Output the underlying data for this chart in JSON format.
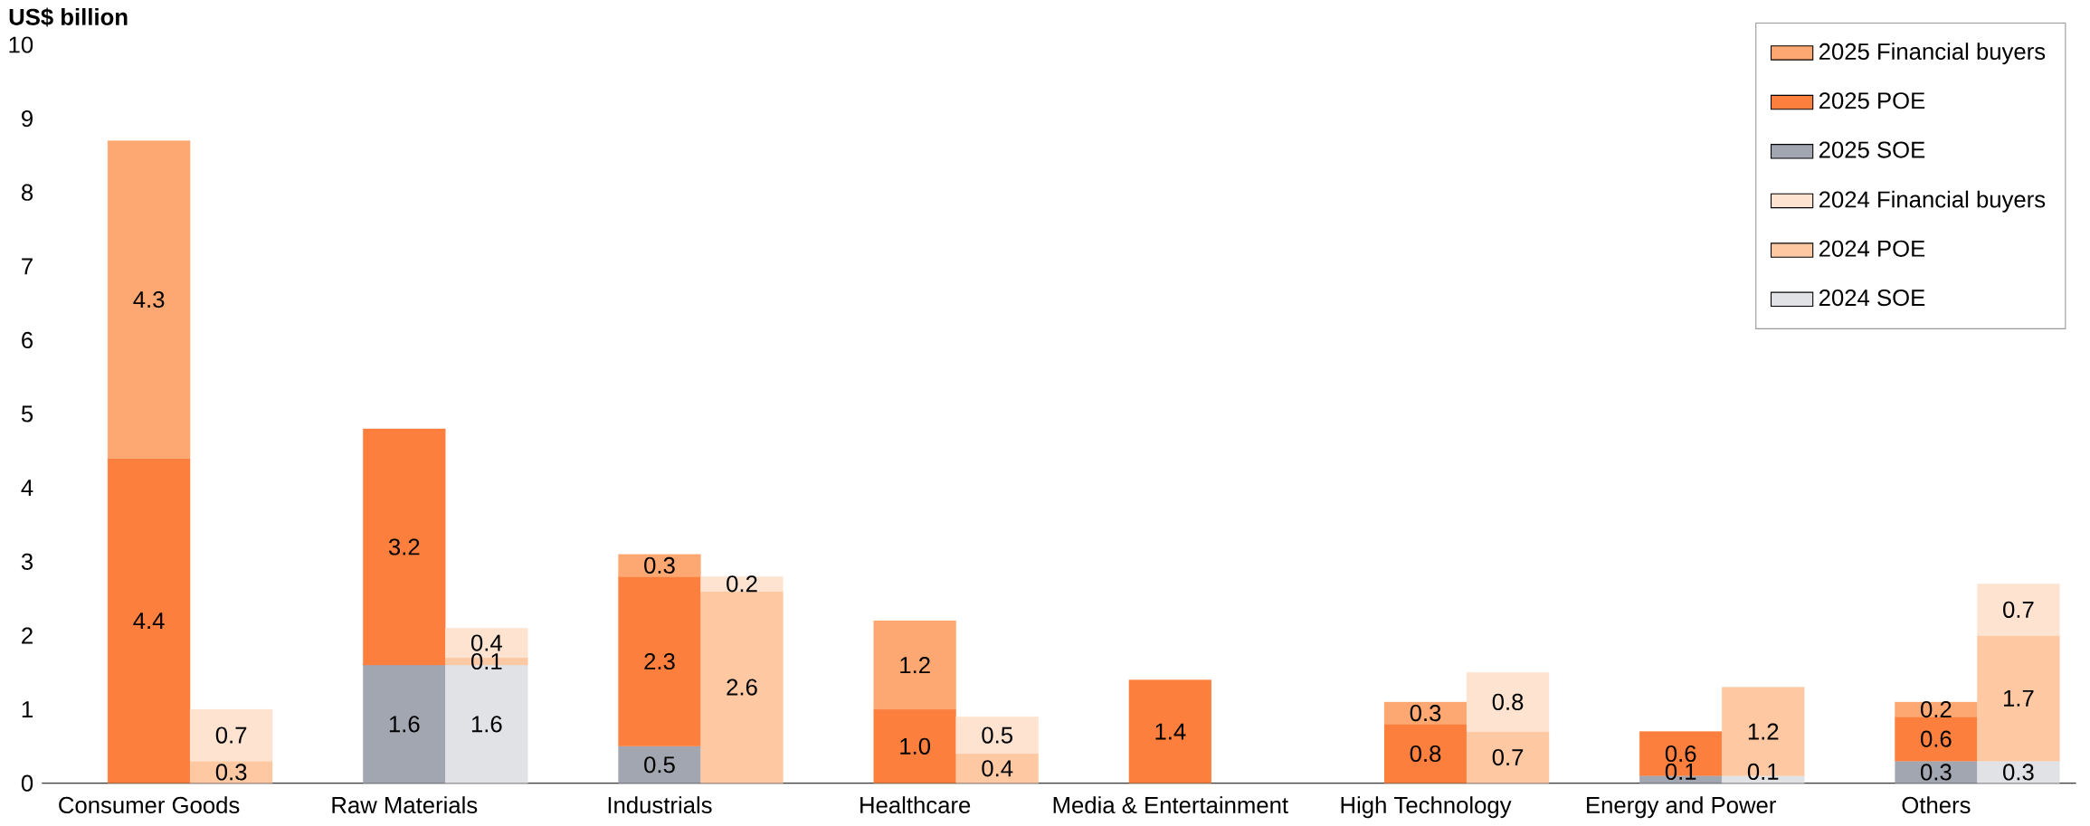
{
  "chart_data": {
    "type": "bar",
    "stacked": true,
    "ylabel": "US$ billion",
    "categories": [
      "Consumer Goods",
      null,
      "Raw Materials",
      null,
      "Industrials",
      null,
      "Healthcare",
      null,
      "Media & Entertainment",
      null,
      "High Technology",
      null,
      "Energy and Power",
      null,
      "Others",
      null
    ],
    "ylim": [
      0,
      10
    ],
    "yticks": [
      0,
      1,
      2,
      3,
      4,
      5,
      6,
      7,
      8,
      9,
      10
    ],
    "legend": "top right",
    "grid": false,
    "series": [
      {
        "name": "2025 SOE",
        "color": "#a2a6b0",
        "values": [
          null,
          null,
          1.6,
          null,
          0.5,
          null,
          null,
          null,
          null,
          null,
          null,
          null,
          0.1,
          null,
          0.3,
          null
        ],
        "value_labels": [
          null,
          null,
          "1.6",
          null,
          "0.5",
          null,
          null,
          null,
          null,
          null,
          null,
          null,
          "0.1",
          null,
          "0.3",
          null
        ]
      },
      {
        "name": "2025 POE",
        "color": "#fd7f3e",
        "values": [
          4.4,
          null,
          3.2,
          null,
          2.3,
          null,
          1.0,
          null,
          1.4,
          null,
          0.8,
          null,
          0.6,
          null,
          0.6,
          null
        ],
        "value_labels": [
          "4.4",
          null,
          "3.2",
          null,
          "2.3",
          null,
          "1.0",
          null,
          "1.4",
          null,
          "0.8",
          null,
          "0.6",
          null,
          "0.6",
          null
        ]
      },
      {
        "name": "2025 Financial buyers",
        "color": "#fda872",
        "values": [
          4.3,
          null,
          null,
          null,
          0.3,
          null,
          1.2,
          null,
          null,
          null,
          0.3,
          null,
          null,
          null,
          0.2,
          null
        ],
        "value_labels": [
          "4.3",
          null,
          null,
          null,
          "0.3",
          null,
          "1.2",
          null,
          null,
          null,
          "0.3",
          null,
          null,
          null,
          "0.2",
          null
        ]
      },
      {
        "name": "2024 SOE",
        "color": "#e0e2e5",
        "values": [
          null,
          null,
          null,
          1.6,
          null,
          null,
          null,
          null,
          null,
          null,
          null,
          null,
          null,
          0.1,
          null,
          0.3
        ],
        "value_labels": [
          null,
          null,
          null,
          "1.6",
          null,
          null,
          null,
          null,
          null,
          null,
          null,
          null,
          null,
          "0.1",
          null,
          "0.3"
        ]
      },
      {
        "name": "2024 POE",
        "color": "#fec8a2",
        "values": [
          null,
          0.3,
          null,
          0.1,
          null,
          2.6,
          null,
          0.4,
          null,
          null,
          null,
          0.7,
          null,
          1.2,
          null,
          1.7
        ],
        "value_labels": [
          null,
          "0.3",
          null,
          "0.1",
          null,
          "2.6",
          null,
          "0.4",
          null,
          null,
          null,
          "0.7",
          null,
          "1.2",
          null,
          "1.7"
        ]
      },
      {
        "name": "2024 Financial buyers",
        "color": "#fee3d1",
        "values": [
          null,
          0.7,
          null,
          0.4,
          null,
          0.2,
          null,
          0.5,
          null,
          null,
          null,
          0.8,
          null,
          null,
          null,
          0.7
        ],
        "value_labels": [
          null,
          "0.7",
          null,
          "0.4",
          null,
          "0.2",
          null,
          "0.5",
          null,
          null,
          null,
          "0.8",
          null,
          null,
          null,
          "0.7"
        ]
      }
    ]
  }
}
